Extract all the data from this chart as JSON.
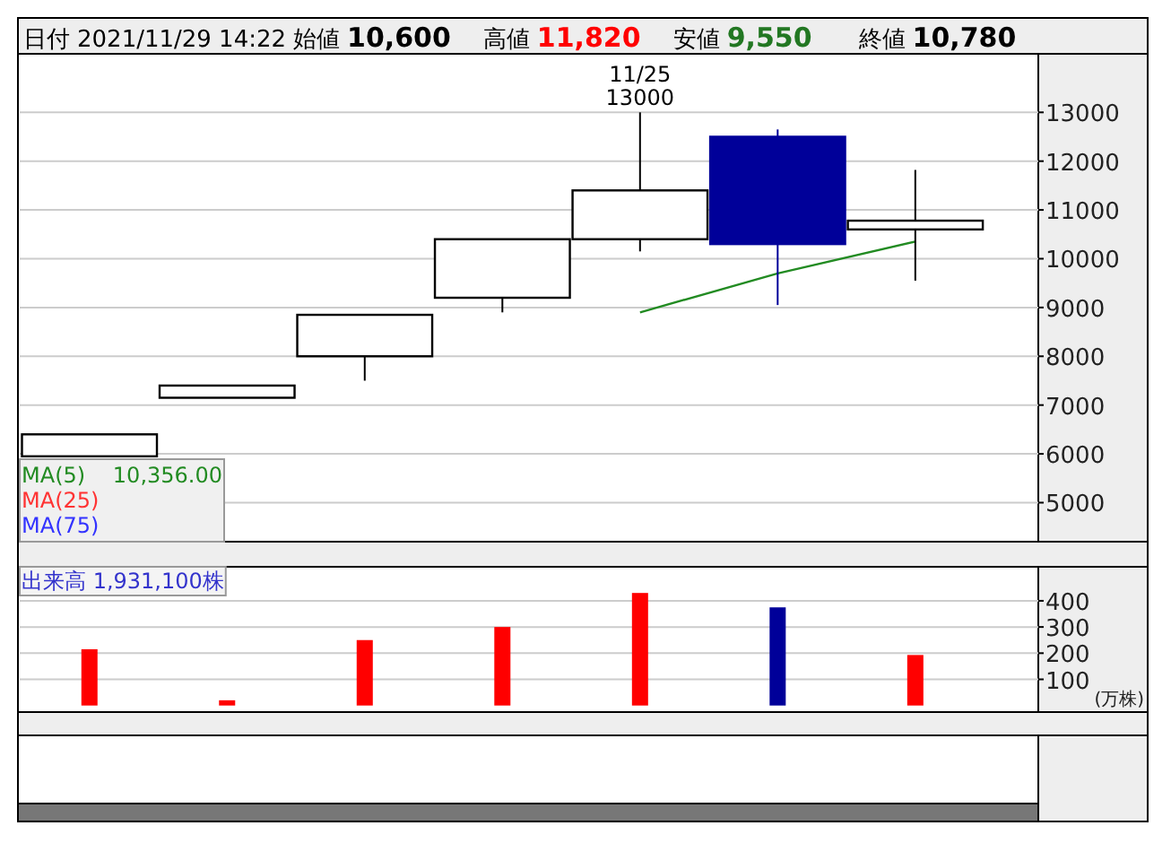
{
  "chart_data": [
    {
      "type": "other",
      "annotations": [
        "日付",
        "2021/11/29 14:22",
        "始値",
        "10,600",
        "高値",
        "11,820",
        "安値",
        "9,550",
        "終値",
        "10,780"
      ]
    },
    {
      "type": "candlestick",
      "categories": [
        null,
        null,
        null,
        null,
        null,
        null,
        null
      ],
      "ohlc": [
        [
          5950,
          6400,
          5950,
          6400
        ],
        [
          7150,
          7400,
          7150,
          7400
        ],
        [
          8000,
          8850,
          7500,
          8850
        ],
        [
          9200,
          10400,
          8900,
          10400
        ],
        [
          10400,
          13000,
          10150,
          11400
        ],
        [
          12500,
          12650,
          9050,
          10300
        ],
        [
          10600,
          11820,
          9550,
          10780
        ]
      ],
      "colors": [
        "#ffffff",
        "#ffffff",
        "#ffffff",
        "#ffffff",
        "#ffffff",
        "#000099",
        "#ffffff"
      ],
      "series": [
        {
          "name": "MA(5)",
          "type": "line",
          "color": "#228b22",
          "values": [
            null,
            null,
            null,
            null,
            8900,
            9700,
            10350
          ]
        },
        {
          "name": "MA(25)",
          "type": "line",
          "color": "#ff3333",
          "values": [
            null,
            null,
            null,
            null,
            null,
            null,
            null
          ]
        },
        {
          "name": "MA(75)",
          "type": "line",
          "color": "#3333ff",
          "values": [
            null,
            null,
            null,
            null,
            null,
            null,
            null
          ]
        }
      ],
      "ylim": [
        4200,
        14200
      ],
      "yticks": [
        5000,
        6000,
        7000,
        8000,
        9000,
        10000,
        11000,
        12000,
        13000
      ],
      "grid": "y",
      "legend": "bottom left",
      "annotations": [
        {
          "text": "11/25",
          "y": 13000
        },
        {
          "text": "13000",
          "y": 13000
        },
        "10,356.00"
      ]
    },
    {
      "type": "bar",
      "title": "出来高 1,931,100株",
      "ylabel": "(万株)",
      "categories": [
        null,
        null,
        null,
        null,
        null,
        null,
        null
      ],
      "values": [
        215,
        20,
        250,
        300,
        430,
        375,
        193
      ],
      "colors": [
        "#ff0000",
        "#ff0000",
        "#ff0000",
        "#ff0000",
        "#ff0000",
        "#000099",
        "#ff0000"
      ],
      "ylim": [
        -25,
        530
      ],
      "yticks": [
        100,
        200,
        300,
        400
      ],
      "grid": "y"
    }
  ]
}
